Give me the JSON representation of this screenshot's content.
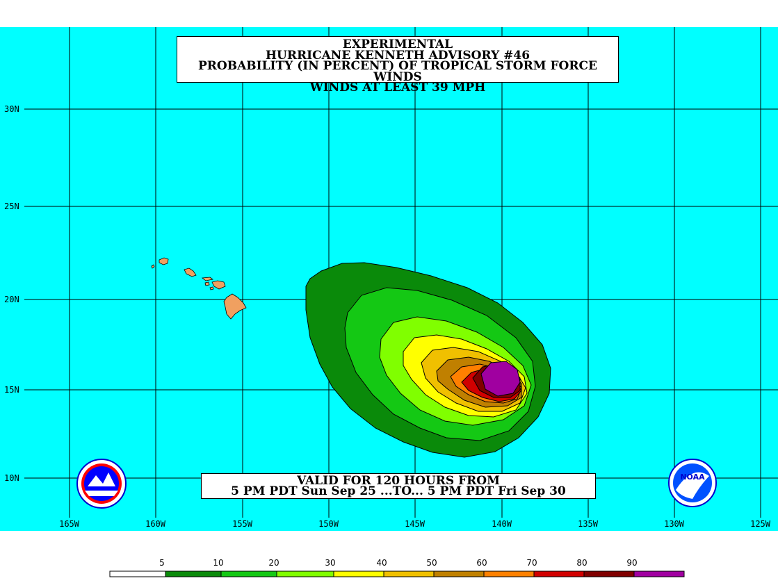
{
  "title": {
    "line1": "EXPERIMENTAL",
    "line2": "HURRICANE KENNETH ADVISORY #46",
    "line3": "PROBABILITY (IN PERCENT) OF TROPICAL STORM FORCE WINDS",
    "line4": "WINDS AT LEAST 39 MPH"
  },
  "valid": {
    "line1": "VALID FOR 120 HOURS FROM",
    "line2": "5 PM PDT Sun Sep 25 ...TO... 5 PM PDT Fri Sep 30"
  },
  "lat_labels": [
    "30N",
    "25N",
    "20N",
    "15N",
    "10N"
  ],
  "lon_labels": [
    "165W",
    "160W",
    "155W",
    "150W",
    "145W",
    "140W",
    "135W",
    "130W",
    "125W"
  ],
  "legend": {
    "labels": [
      "5",
      "10",
      "20",
      "30",
      "40",
      "50",
      "60",
      "70",
      "80",
      "90"
    ],
    "colors": [
      "#ffffff",
      "#0a8a0a",
      "#14c814",
      "#80ff00",
      "#ffff00",
      "#f0c000",
      "#c08000",
      "#ff8000",
      "#d00000",
      "#800000",
      "#a000a0"
    ]
  },
  "colors": {
    "ocean": "#00ffff",
    "land": "#f0a060",
    "grid": "#000000"
  },
  "logos": {
    "left": "nws-logo-icon",
    "right": "noaa-logo-icon"
  }
}
